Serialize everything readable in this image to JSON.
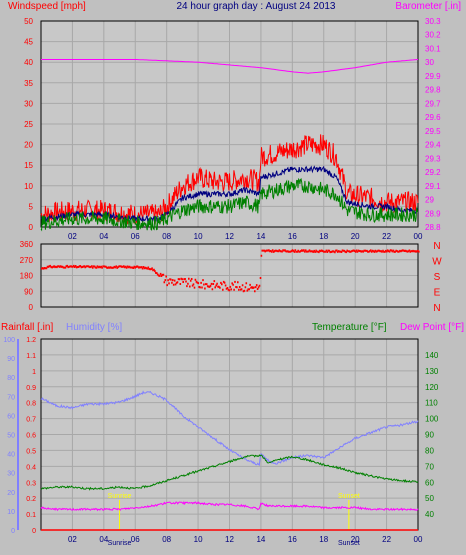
{
  "chart_data": [
    {
      "type": "line",
      "header": {
        "left": "Windspeed [mph]",
        "center": "24 hour graph day : August 24 2013",
        "right": "Barometer [.in]"
      },
      "x_ticks": [
        "02",
        "04",
        "06",
        "08",
        "10",
        "12",
        "14",
        "16",
        "18",
        "20",
        "22",
        "00"
      ],
      "x_range": [
        0,
        24
      ],
      "left_axis": {
        "ylim": [
          0,
          50
        ],
        "ticks": [
          "0",
          "5",
          "10",
          "15",
          "20",
          "25",
          "30",
          "35",
          "40",
          "45",
          "50"
        ]
      },
      "right_axis": {
        "ylim": [
          28.8,
          30.3
        ],
        "ticks": [
          "28.8",
          "28.9",
          "29",
          "29.1",
          "29.2",
          "29.3",
          "29.4",
          "29.5",
          "29.6",
          "29.7",
          "29.8",
          "29.9",
          "30",
          "30.1",
          "30.2",
          "30.3"
        ]
      },
      "series": [
        {
          "role": "gust",
          "color": "#ff0000",
          "axis": "left",
          "x": [
            0,
            2,
            4,
            6,
            7.5,
            8,
            9,
            10,
            11,
            12,
            13,
            13.9,
            14,
            15,
            16,
            17,
            18,
            18.8,
            19.5,
            21,
            22,
            23,
            24
          ],
          "y": [
            3,
            4,
            4,
            3,
            3,
            5,
            10,
            12,
            11,
            11,
            12,
            11,
            17,
            18,
            19,
            20,
            20,
            17,
            8,
            7,
            6,
            6,
            6
          ]
        },
        {
          "role": "average",
          "color": "#000080",
          "axis": "left",
          "x": [
            0,
            2,
            4,
            6,
            7.5,
            8,
            9,
            10,
            11,
            12,
            13,
            13.9,
            14,
            15,
            16,
            17,
            18,
            18.8,
            19.5,
            21,
            22,
            23,
            24
          ],
          "y": [
            2,
            3,
            3,
            2,
            2,
            3,
            7,
            8,
            8,
            8,
            9,
            8,
            12,
            13,
            14,
            14,
            14,
            12,
            6,
            5,
            5,
            4,
            4
          ]
        },
        {
          "role": "speed",
          "color": "#008000",
          "axis": "left",
          "x": [
            0,
            2,
            4,
            6,
            7.5,
            8,
            9,
            10,
            11,
            12,
            13,
            13.9,
            14,
            15,
            16,
            17,
            18,
            18.8,
            19.5,
            21,
            22,
            23,
            24
          ],
          "y": [
            1,
            2,
            2,
            1,
            1,
            2,
            4,
            5,
            5,
            5,
            6,
            5,
            8,
            9,
            10,
            10,
            9,
            8,
            4,
            3,
            3,
            3,
            3
          ]
        },
        {
          "role": "barometer",
          "color": "#ff00ff",
          "axis": "right",
          "x": [
            0,
            2,
            4,
            6,
            8,
            10,
            12,
            14,
            16,
            17,
            18,
            20,
            22,
            24
          ],
          "y": [
            30.02,
            30.02,
            30.02,
            30.02,
            30.01,
            30.0,
            29.98,
            29.96,
            29.93,
            29.92,
            29.93,
            29.96,
            30.0,
            30.02
          ]
        }
      ]
    },
    {
      "type": "scatter",
      "x_ticks": [
        "02",
        "04",
        "06",
        "08",
        "10",
        "12",
        "14",
        "16",
        "18",
        "20",
        "22",
        "00"
      ],
      "x_range": [
        0,
        24
      ],
      "left_axis": {
        "ylim": [
          0,
          360
        ],
        "ticks": [
          "0",
          "90",
          "180",
          "270",
          "360"
        ]
      },
      "right_labels": [
        "N",
        "W",
        "S",
        "E",
        "N"
      ],
      "series": [
        {
          "role": "wind direction",
          "color": "#ff0000",
          "x": [
            0,
            0.5,
            2,
            4,
            6,
            7,
            7.5,
            8,
            10,
            12,
            13.9,
            14,
            16,
            18,
            20,
            22,
            24
          ],
          "y": [
            220,
            230,
            230,
            228,
            228,
            220,
            180,
            150,
            130,
            120,
            110,
            320,
            320,
            318,
            318,
            320,
            318
          ]
        }
      ]
    },
    {
      "type": "line",
      "header": {
        "left_a": "Rainfall [.in]",
        "left_b": "Humidity [%]",
        "right_a": "Temperature [°F]",
        "right_b": "Dew Point [°F]"
      },
      "x_ticks": [
        "02",
        "04",
        "06",
        "08",
        "10",
        "12",
        "14",
        "16",
        "18",
        "20",
        "22",
        "00"
      ],
      "x_range": [
        0,
        24
      ],
      "humidity_axis": {
        "ylim": [
          0,
          100
        ],
        "ticks": [
          "0",
          "10",
          "20",
          "30",
          "40",
          "50",
          "60",
          "70",
          "80",
          "90",
          "100"
        ]
      },
      "rain_axis": {
        "ylim": [
          0,
          1.2
        ],
        "ticks": [
          "0",
          "0.1",
          "0.2",
          "0.3",
          "0.4",
          "0.5",
          "0.6",
          "0.7",
          "0.8",
          "0.9",
          "1",
          "1.1",
          "1.2"
        ]
      },
      "temp_axis": {
        "ylim": [
          30,
          150
        ],
        "ticks": [
          "40",
          "50",
          "60",
          "70",
          "80",
          "90",
          "100",
          "110",
          "120",
          "130",
          "140"
        ]
      },
      "annotations": [
        {
          "label": "Sunrise",
          "x": 5.0
        },
        {
          "label": "Sunset",
          "x": 19.6
        }
      ],
      "bottom_labels": [
        "Sunrise",
        "Sunset"
      ],
      "series": [
        {
          "role": "humidity",
          "color": "#8080ff",
          "axis": "humidity",
          "x": [
            0,
            1,
            2,
            3,
            4,
            5,
            6,
            6.5,
            7,
            8,
            9,
            10,
            11,
            12,
            13,
            13.9,
            14,
            14.5,
            15,
            16,
            17,
            18,
            19,
            20,
            21,
            22,
            23,
            24
          ],
          "y": [
            69,
            65,
            64,
            66,
            66,
            67,
            70,
            72,
            72,
            68,
            60,
            54,
            48,
            42,
            37,
            34,
            40,
            36,
            35,
            38,
            39,
            38,
            43,
            48,
            51,
            54,
            55,
            57
          ]
        },
        {
          "role": "temperature",
          "color": "#008000",
          "axis": "temp",
          "x": [
            0,
            1,
            2,
            3,
            4,
            5,
            6,
            7,
            8,
            9,
            10,
            11,
            12,
            13,
            14,
            14.5,
            15,
            16,
            17,
            18,
            19,
            20,
            21,
            22,
            23,
            24
          ],
          "y": [
            56,
            57,
            57,
            56,
            56,
            57,
            56,
            58,
            61,
            64,
            67,
            70,
            73,
            76,
            77,
            72,
            74,
            76,
            74,
            71,
            69,
            66,
            64,
            62,
            61,
            60
          ]
        },
        {
          "role": "dew point",
          "color": "#ff00ff",
          "axis": "temp",
          "x": [
            0,
            1,
            2,
            3,
            4,
            5,
            6,
            7,
            8,
            9,
            10,
            11,
            12,
            13,
            13.9,
            14,
            14.5,
            15,
            16,
            17,
            18,
            19,
            20,
            21,
            22,
            23,
            24
          ],
          "y": [
            44,
            43,
            43,
            43,
            43,
            43,
            44,
            45,
            47,
            47,
            47,
            46,
            46,
            45,
            43,
            47,
            45,
            45,
            45,
            45,
            44,
            44,
            44,
            43,
            43,
            43,
            43
          ]
        },
        {
          "role": "rainfall",
          "color": "#ff0000",
          "axis": "rain",
          "x": [
            0,
            24
          ],
          "y": [
            0,
            0
          ]
        }
      ]
    }
  ]
}
